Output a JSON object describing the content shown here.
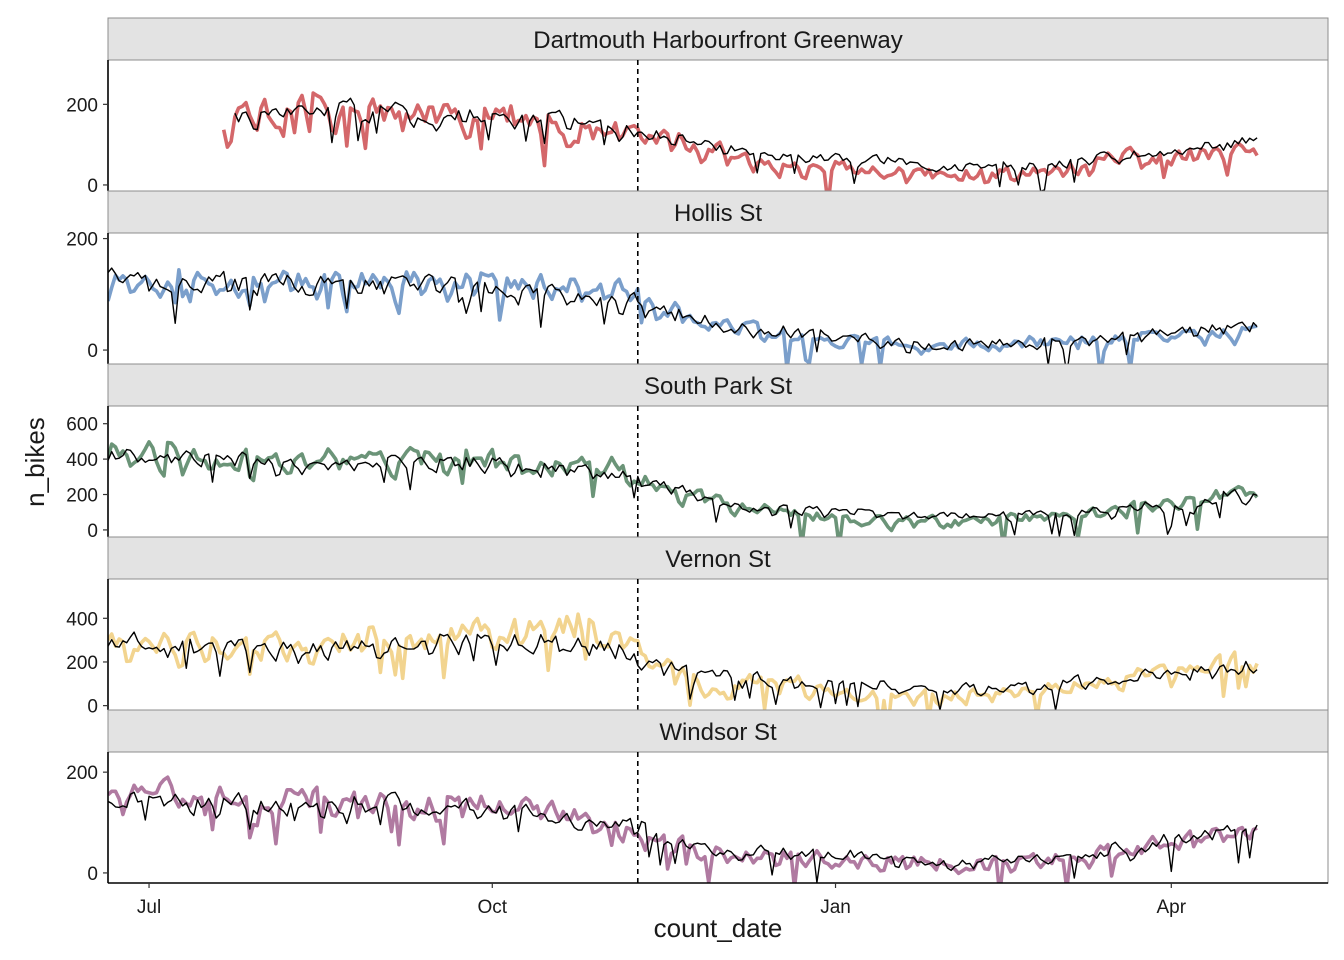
{
  "chart_data": {
    "type": "line",
    "xlabel": "count_date",
    "ylabel": "n_bikes",
    "x_range": [
      "2022-06-20",
      "2023-05-13"
    ],
    "x_ticks": [
      {
        "date": "2022-07-01",
        "label": "Jul"
      },
      {
        "date": "2022-10-01",
        "label": "Oct"
      },
      {
        "date": "2023-01-01",
        "label": "Jan"
      },
      {
        "date": "2023-04-01",
        "label": "Apr"
      }
    ],
    "split_date": "2022-11-09",
    "series_colors": {
      "Dartmouth Harbourfront Greenway": "#d4676a",
      "Hollis St": "#7b9fcb",
      "South Park St": "#6b9478",
      "Vernon St": "#f2d48f",
      "Windsor St": "#b07aa1",
      "fitted": "#000000"
    },
    "panels": [
      {
        "name": "Dartmouth Harbourfront Greenway",
        "ylim": [
          -15,
          310
        ],
        "yticks": [
          {
            "value": 0,
            "label": "0"
          },
          {
            "value": 200,
            "label": "200"
          }
        ],
        "observed": {
          "start": "2022-07-21",
          "end": "2023-04-24",
          "knots": [
            [
              0,
              150
            ],
            [
              0.1,
              185
            ],
            [
              0.2,
              175
            ],
            [
              0.3,
              170
            ],
            [
              0.42,
              125
            ],
            [
              0.5,
              60
            ],
            [
              0.6,
              35
            ],
            [
              0.7,
              22
            ],
            [
              0.8,
              30
            ],
            [
              0.9,
              70
            ],
            [
              1,
              80
            ]
          ],
          "noise": 60,
          "seed": 11
        },
        "fitted": {
          "start": "2022-07-24",
          "end": "2023-04-24",
          "knots": [
            [
              0,
              160
            ],
            [
              0.1,
              185
            ],
            [
              0.2,
              175
            ],
            [
              0.3,
              165
            ],
            [
              0.42,
              120
            ],
            [
              0.5,
              75
            ],
            [
              0.6,
              60
            ],
            [
              0.7,
              45
            ],
            [
              0.8,
              50
            ],
            [
              0.9,
              80
            ],
            [
              1,
              110
            ]
          ],
          "noise": 40,
          "seed": 21
        }
      },
      {
        "name": "Hollis St",
        "ylim": [
          -25,
          210
        ],
        "yticks": [
          {
            "value": 0,
            "label": "0"
          },
          {
            "value": 200,
            "label": "200"
          }
        ],
        "observed": {
          "start": "2022-06-20",
          "end": "2023-04-24",
          "knots": [
            [
              0,
              110
            ],
            [
              0.15,
              120
            ],
            [
              0.3,
              125
            ],
            [
              0.44,
              110
            ],
            [
              0.52,
              50
            ],
            [
              0.6,
              20
            ],
            [
              0.7,
              10
            ],
            [
              0.8,
              10
            ],
            [
              0.9,
              25
            ],
            [
              1,
              35
            ]
          ],
          "noise": 40,
          "seed": 12
        },
        "fitted": {
          "start": "2022-06-20",
          "end": "2023-04-24",
          "knots": [
            [
              0,
              120
            ],
            [
              0.15,
              115
            ],
            [
              0.3,
              110
            ],
            [
              0.44,
              95
            ],
            [
              0.52,
              50
            ],
            [
              0.6,
              30
            ],
            [
              0.7,
              10
            ],
            [
              0.8,
              10
            ],
            [
              0.9,
              25
            ],
            [
              1,
              50
            ]
          ],
          "noise": 35,
          "seed": 22
        }
      },
      {
        "name": "South Park St",
        "ylim": [
          -40,
          700
        ],
        "yticks": [
          {
            "value": 0,
            "label": "0"
          },
          {
            "value": 200,
            "label": "200"
          },
          {
            "value": 400,
            "label": "400"
          },
          {
            "value": 600,
            "label": "600"
          }
        ],
        "observed": {
          "start": "2022-06-20",
          "end": "2023-04-24",
          "knots": [
            [
              0,
              450
            ],
            [
              0.15,
              390
            ],
            [
              0.3,
              400
            ],
            [
              0.44,
              350
            ],
            [
              0.52,
              170
            ],
            [
              0.6,
              80
            ],
            [
              0.7,
              40
            ],
            [
              0.8,
              50
            ],
            [
              0.9,
              130
            ],
            [
              1,
              210
            ]
          ],
          "noise": 120,
          "seed": 13
        },
        "fitted": {
          "start": "2022-06-20",
          "end": "2023-04-24",
          "knots": [
            [
              0,
              420
            ],
            [
              0.15,
              380
            ],
            [
              0.3,
              380
            ],
            [
              0.44,
              320
            ],
            [
              0.52,
              170
            ],
            [
              0.6,
              100
            ],
            [
              0.7,
              80
            ],
            [
              0.8,
              80
            ],
            [
              0.9,
              120
            ],
            [
              1,
              200
            ]
          ],
          "noise": 90,
          "seed": 23
        }
      },
      {
        "name": "Vernon St",
        "ylim": [
          -20,
          580
        ],
        "yticks": [
          {
            "value": 0,
            "label": "0"
          },
          {
            "value": 200,
            "label": "200"
          },
          {
            "value": 400,
            "label": "400"
          }
        ],
        "observed": {
          "start": "2022-06-20",
          "end": "2023-04-24",
          "knots": [
            [
              0,
              300
            ],
            [
              0.15,
              260
            ],
            [
              0.3,
              330
            ],
            [
              0.4,
              380
            ],
            [
              0.48,
              200
            ],
            [
              0.52,
              60
            ],
            [
              0.58,
              120
            ],
            [
              0.66,
              40
            ],
            [
              0.8,
              50
            ],
            [
              0.9,
              130
            ],
            [
              1,
              200
            ]
          ],
          "noise": 110,
          "seed": 14
        },
        "fitted": {
          "start": "2022-06-20",
          "end": "2023-04-24",
          "knots": [
            [
              0,
              290
            ],
            [
              0.15,
              250
            ],
            [
              0.3,
              300
            ],
            [
              0.44,
              260
            ],
            [
              0.52,
              120
            ],
            [
              0.6,
              110
            ],
            [
              0.7,
              80
            ],
            [
              0.8,
              80
            ],
            [
              0.9,
              130
            ],
            [
              1,
              170
            ]
          ],
          "noise": 80,
          "seed": 24
        }
      },
      {
        "name": "Windsor St",
        "ylim": [
          -20,
          240
        ],
        "yticks": [
          {
            "value": 0,
            "label": "0"
          },
          {
            "value": 200,
            "label": "200"
          }
        ],
        "observed": {
          "start": "2022-06-20",
          "end": "2023-04-24",
          "knots": [
            [
              0,
              150
            ],
            [
              0.15,
              145
            ],
            [
              0.3,
              140
            ],
            [
              0.44,
              105
            ],
            [
              0.52,
              45
            ],
            [
              0.6,
              30
            ],
            [
              0.7,
              20
            ],
            [
              0.8,
              20
            ],
            [
              0.9,
              50
            ],
            [
              1,
              80
            ]
          ],
          "noise": 50,
          "seed": 15
        },
        "fitted": {
          "start": "2022-06-20",
          "end": "2023-04-24",
          "knots": [
            [
              0,
              150
            ],
            [
              0.15,
              135
            ],
            [
              0.3,
              130
            ],
            [
              0.44,
              95
            ],
            [
              0.52,
              50
            ],
            [
              0.6,
              40
            ],
            [
              0.7,
              25
            ],
            [
              0.8,
              25
            ],
            [
              0.9,
              50
            ],
            [
              1,
              90
            ]
          ],
          "noise": 40,
          "seed": 25
        }
      }
    ]
  }
}
